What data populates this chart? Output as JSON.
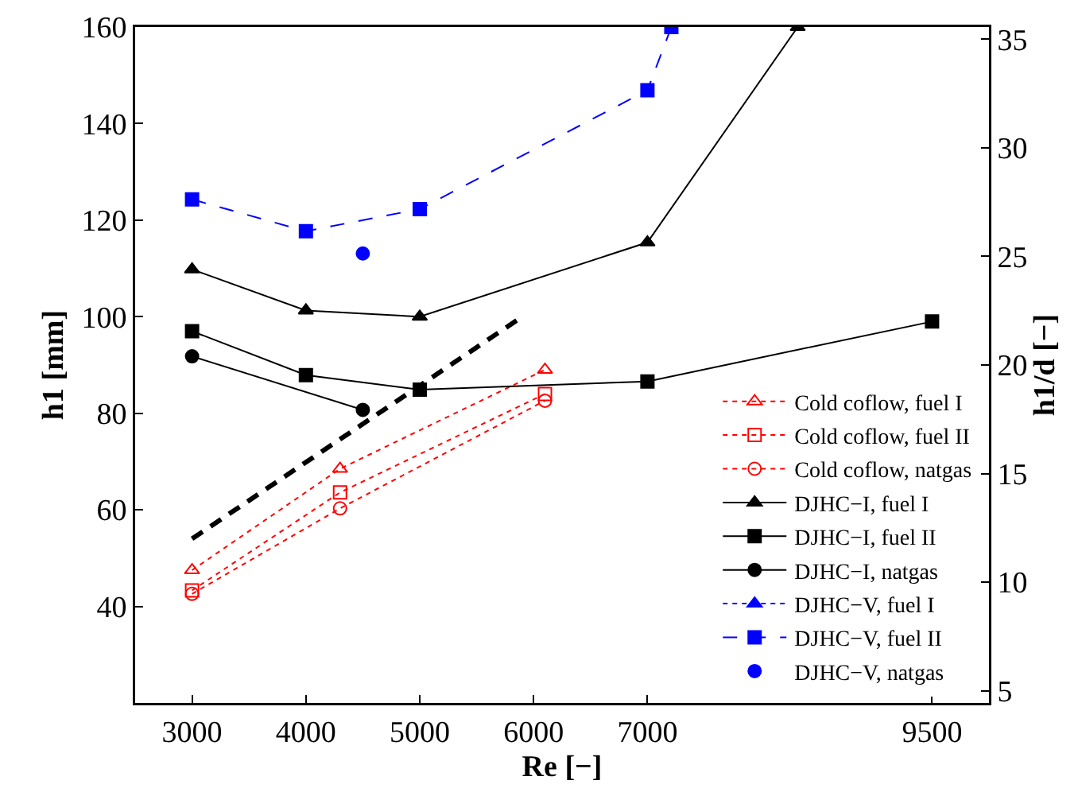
{
  "chart_data": {
    "type": "line",
    "xlabel": "Re [−]",
    "ylabel": "h1 [mm]",
    "y2label": "h1/d [−]",
    "xlim": [
      2500,
      10000
    ],
    "xticks": [
      3000,
      4000,
      5000,
      6000,
      7000,
      9500
    ],
    "ylim": [
      20,
      160
    ],
    "yticks": [
      40,
      60,
      80,
      100,
      120,
      140,
      160
    ],
    "y2lim": [
      4.44,
      35.56
    ],
    "y2ticks": [
      5,
      10,
      15,
      20,
      25,
      30,
      35
    ],
    "grid": false,
    "legend": "bottom right",
    "series": [
      {
        "name": "Cold coflow, fuel I",
        "color": "#ff0000",
        "marker": "triangle",
        "line_style": "dotted",
        "x": [
          3000,
          4300,
          6100
        ],
        "values": [
          47.5,
          68.5,
          89
        ]
      },
      {
        "name": "Cold coflow, fuel II",
        "color": "#ff0000",
        "marker": "square",
        "line_style": "dotted",
        "x": [
          3000,
          4300,
          6100
        ],
        "values": [
          43.3,
          63.6,
          84
        ]
      },
      {
        "name": "Cold coflow, natgas",
        "color": "#ff0000",
        "marker": "circle",
        "line_style": "dotted",
        "x": [
          3000,
          4300,
          6100
        ],
        "values": [
          42.6,
          60.3,
          82.6
        ]
      },
      {
        "name": "DJHC−I, fuel I",
        "color": "#000000",
        "marker": "triangle",
        "line_style": "solid",
        "x": [
          3000,
          4000,
          5000,
          7000,
          8320
        ],
        "values": [
          109.8,
          101.3,
          100,
          115.4,
          160
        ]
      },
      {
        "name": "DJHC−I, fuel II",
        "color": "#000000",
        "marker": "square",
        "line_style": "solid",
        "x": [
          3000,
          4000,
          5000,
          7000,
          9500
        ],
        "values": [
          97,
          87.9,
          84.9,
          86.6,
          99
        ]
      },
      {
        "name": "DJHC−I, natgas",
        "color": "#000000",
        "marker": "circle",
        "line_style": "solid",
        "x": [
          3000,
          4500
        ],
        "values": [
          91.8,
          80.7
        ]
      },
      {
        "name": "DJHC−V, fuel I",
        "color": "#0000ff",
        "marker": "triangle",
        "line_style": "dotted"
      },
      {
        "name": "DJHC−V, fuel II",
        "color": "#0000ff",
        "marker": "square",
        "line_style": "dashed",
        "x": [
          3000,
          4000,
          5000,
          7000,
          7210
        ],
        "values": [
          124.3,
          117.7,
          122.3,
          146.9,
          160
        ]
      },
      {
        "name": "DJHC−V, natgas",
        "type": "scatter",
        "color": "#0000ff",
        "marker": "circle",
        "x": [
          4500
        ],
        "values": [
          113.1
        ]
      },
      {
        "color": "#000000",
        "marker": "none",
        "line_style": "dashed",
        "x": [
          3000,
          5900
        ],
        "values": [
          54,
          100
        ]
      }
    ]
  }
}
